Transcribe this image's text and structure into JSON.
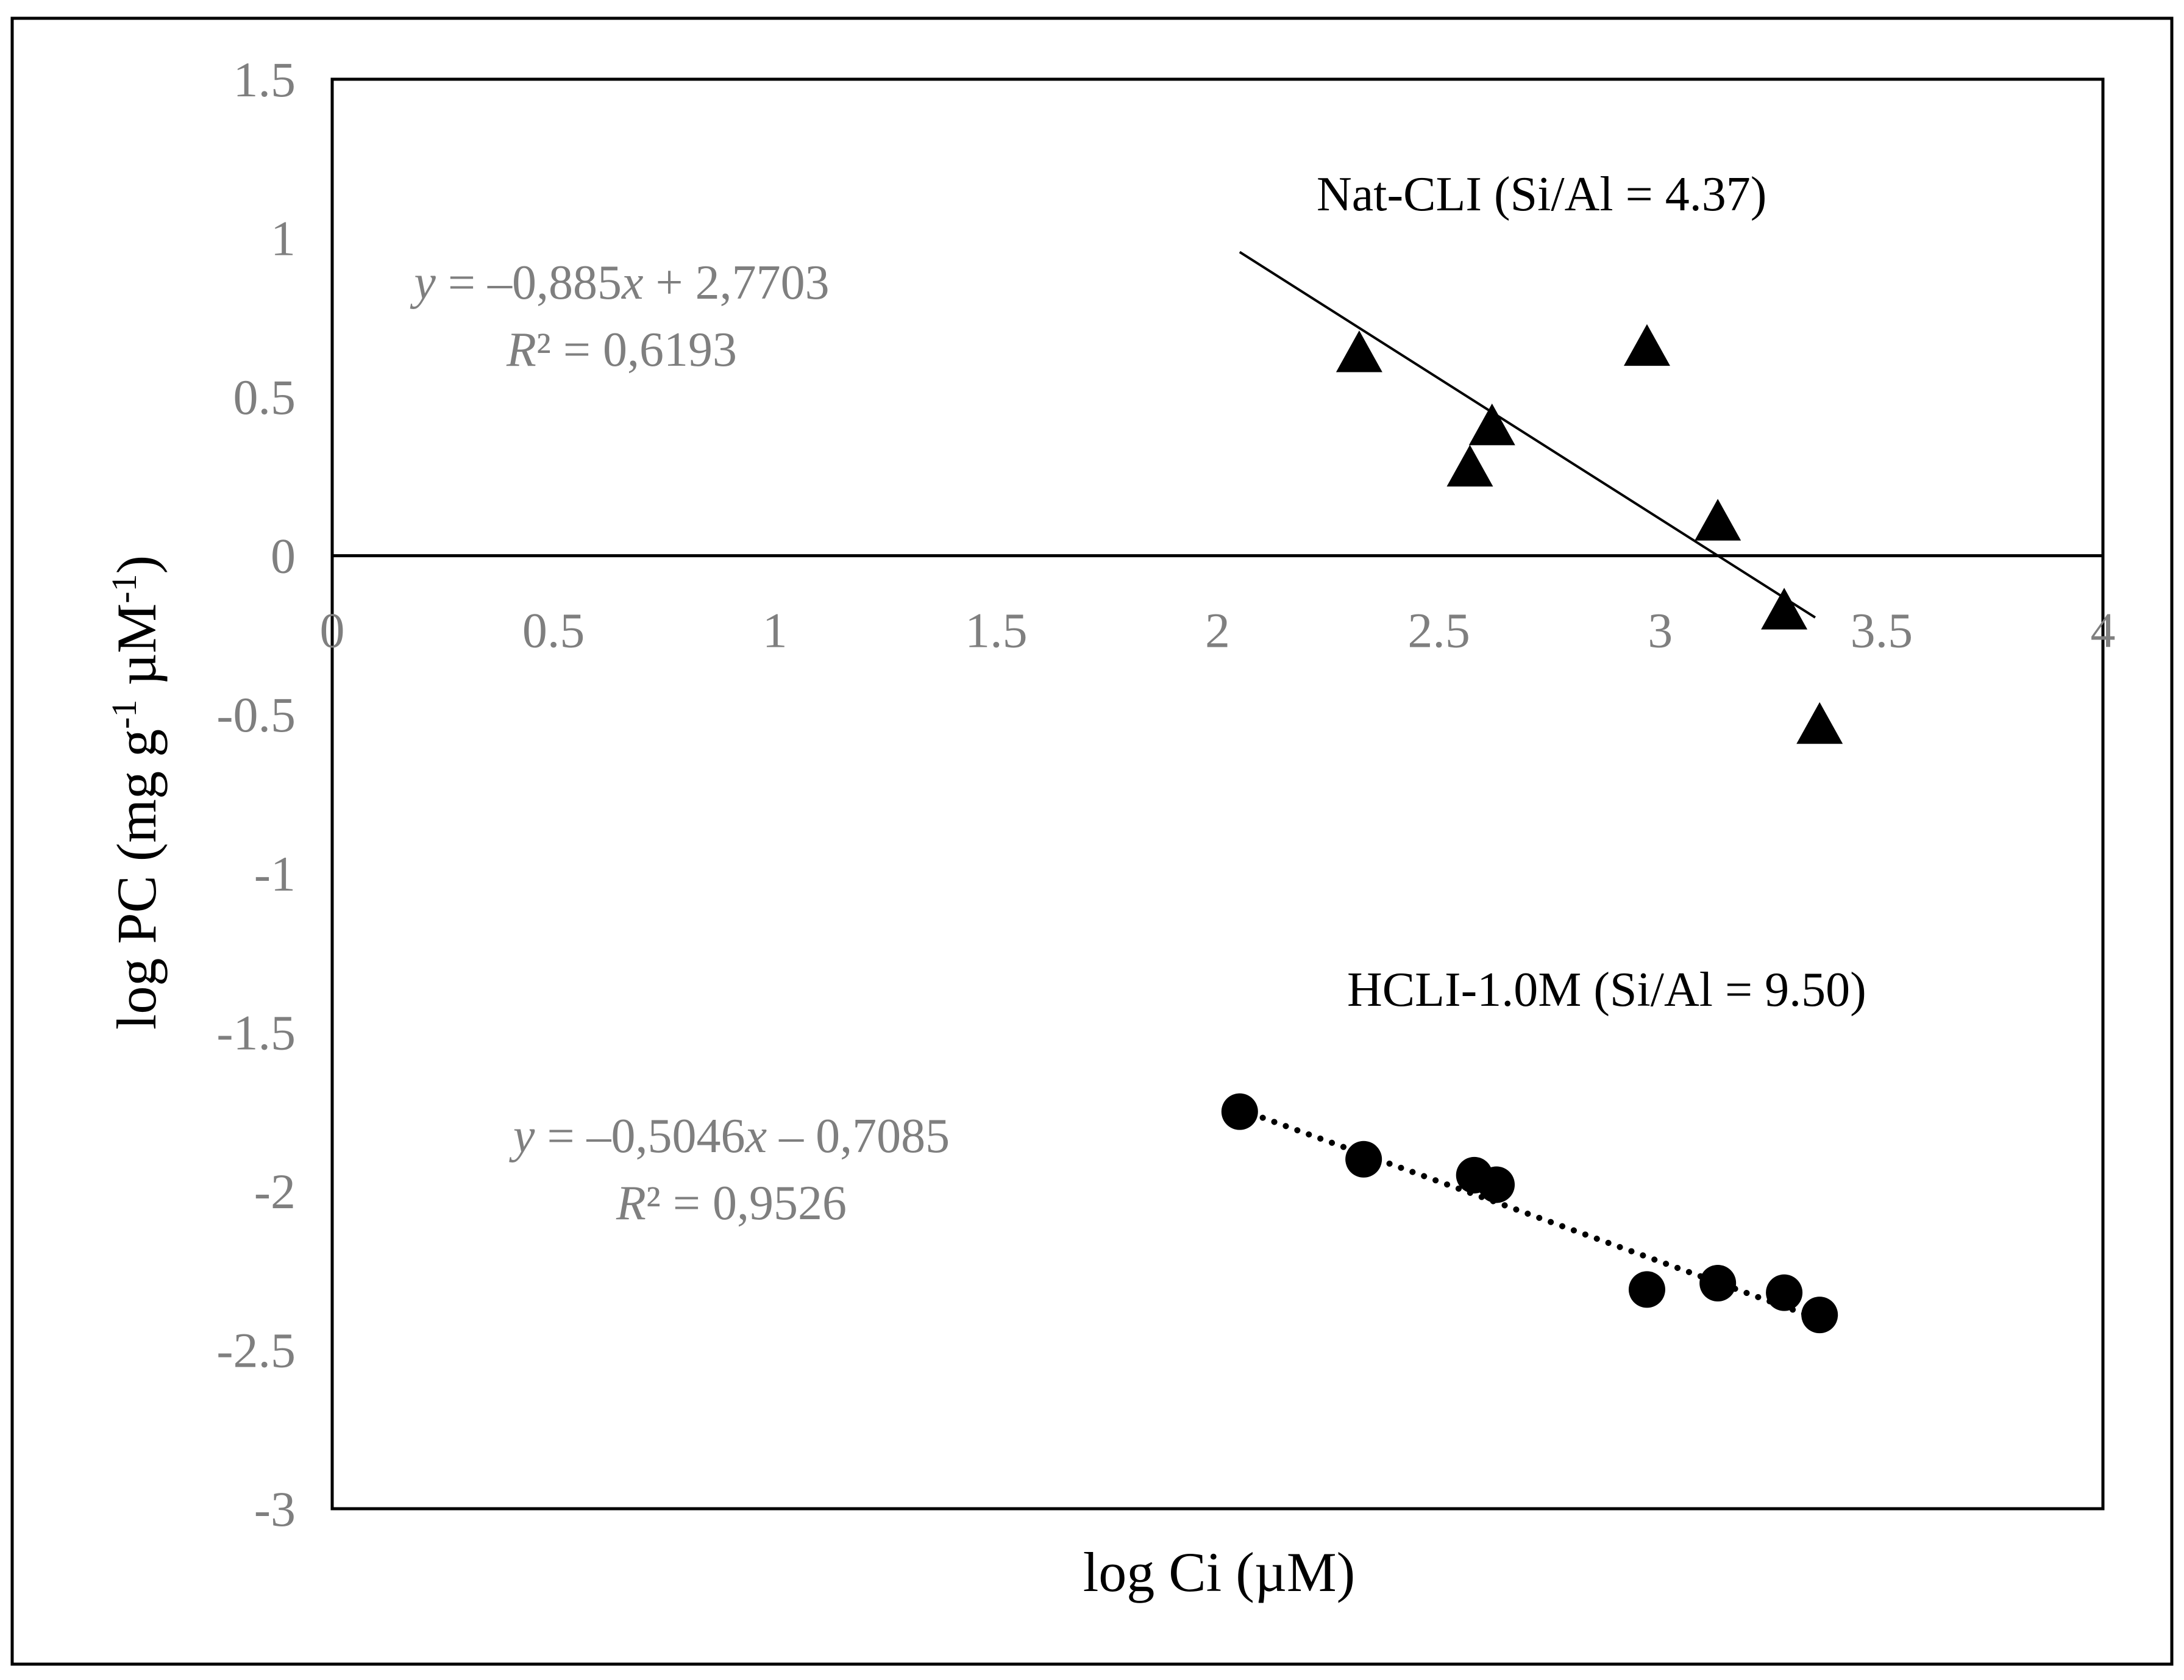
{
  "chart_data": {
    "type": "scatter",
    "xlabel": "log Ci (µM)",
    "ylabel_parts": {
      "a": "log PC (mg g",
      "sup1": "-1",
      "b": " µM",
      "sup2": "-1",
      "c": ")"
    },
    "xlim": [
      0,
      4
    ],
    "ylim": [
      -3,
      1.5
    ],
    "x_ticks": [
      0,
      0.5,
      1,
      1.5,
      2,
      2.5,
      3,
      3.5,
      4
    ],
    "x_tick_labels": [
      "0",
      "0.5",
      "1",
      "1.5",
      "2",
      "2.5",
      "3",
      "3.5",
      "4"
    ],
    "y_ticks": [
      1.5,
      1,
      0.5,
      0,
      -0.5,
      -1,
      -1.5,
      -2,
      -2.5,
      -3
    ],
    "y_tick_labels": [
      "1.5",
      "1",
      "0.5",
      "0",
      "-0.5",
      "-1",
      "-1.5",
      "-2",
      "-2.5",
      "-3"
    ],
    "grid": false,
    "series": [
      {
        "name": "Nat-CLI (Si/Al = 4.37)",
        "marker": "triangle",
        "x": [
          2.32,
          2.57,
          2.62,
          2.97,
          3.13,
          3.28,
          3.36
        ],
        "y": [
          0.64,
          0.28,
          0.41,
          0.66,
          0.11,
          -0.17,
          -0.53
        ],
        "trendline": {
          "style": "solid",
          "slope": -0.885,
          "intercept": 2.7703,
          "x_range": [
            2.05,
            3.35
          ],
          "eq_parts": {
            "y": "y",
            "mid": " = –0,885",
            "x": "x",
            "end": " + 2,7703"
          },
          "r2_parts": {
            "r": "R",
            "rest": "² = 0,6193"
          }
        }
      },
      {
        "name": "HCLI-1.0M (Si/Al = 9.50)",
        "marker": "circle",
        "x": [
          2.05,
          2.33,
          2.58,
          2.63,
          2.97,
          3.13,
          3.28,
          3.36
        ],
        "y": [
          -1.75,
          -1.9,
          -1.95,
          -1.98,
          -2.31,
          -2.29,
          -2.32,
          -2.39
        ],
        "trendline": {
          "style": "dotted",
          "slope": -0.5046,
          "intercept": -0.7085,
          "x_range": [
            2.05,
            3.36
          ],
          "eq_parts": {
            "y": "y",
            "mid": " = –0,5046",
            "x": "x",
            "end": " – 0,7085"
          },
          "r2_parts": {
            "r": "R",
            "rest": "² = 0,9526"
          }
        }
      }
    ]
  }
}
